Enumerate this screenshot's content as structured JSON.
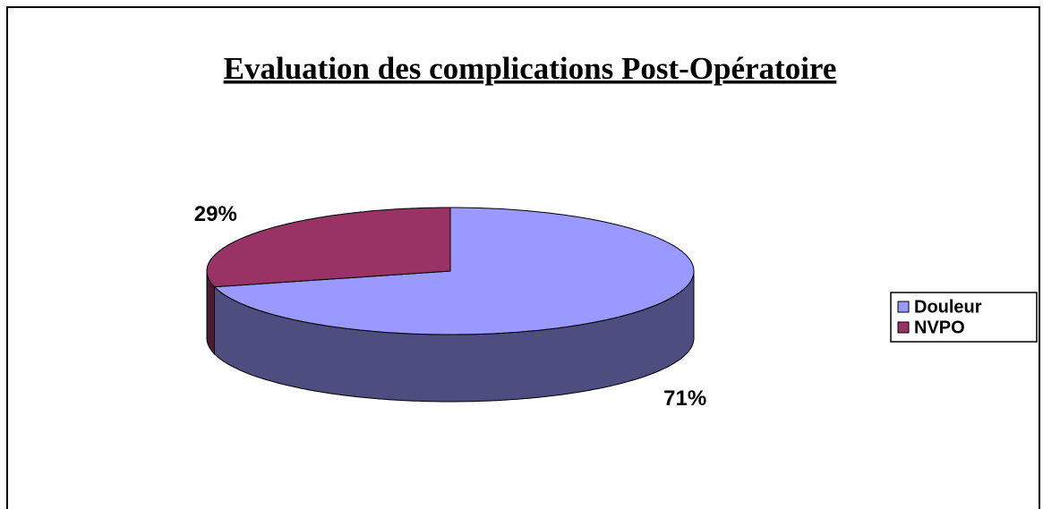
{
  "chart_data": {
    "type": "pie",
    "title": "Evaluation des complications Post-Opératoire",
    "categories": [
      "Douleur",
      "NVPO"
    ],
    "values": [
      71,
      29
    ],
    "value_labels": [
      "71%",
      "29%"
    ],
    "colors": [
      "#9999ff",
      "#993366"
    ],
    "legend": "right"
  }
}
